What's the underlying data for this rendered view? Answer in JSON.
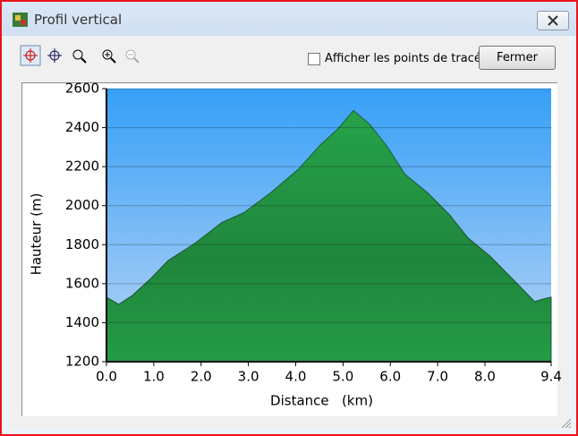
{
  "window": {
    "title": "Profil vertical",
    "checkbox_label": "Afficher les points de tracé",
    "close_button": "Fermer"
  },
  "chart_data": {
    "type": "area",
    "x_label": "Distance   (km)",
    "y_label": "Hauteur (m)",
    "x": [
      0,
      0.26,
      0.55,
      0.93,
      1.3,
      1.87,
      2.44,
      2.91,
      3.48,
      4.05,
      4.52,
      4.9,
      5.22,
      5.56,
      5.94,
      6.31,
      6.78,
      7.26,
      7.64,
      8.11,
      8.58,
      9.05,
      9.24,
      9.4
    ],
    "values": [
      1531,
      1494,
      1540,
      1625,
      1718,
      1807,
      1914,
      1965,
      2068,
      2185,
      2311,
      2395,
      2488,
      2418,
      2301,
      2161,
      2068,
      1951,
      1835,
      1741,
      1625,
      1508,
      1522,
      1531
    ],
    "color": "#26a34a",
    "xlim": [
      0,
      9.4
    ],
    "ylim": [
      1200,
      2600
    ],
    "xticks": [
      {
        "value": 0,
        "label": "0.0"
      },
      {
        "value": 1,
        "label": "1.0"
      },
      {
        "value": 2,
        "label": "2.0"
      },
      {
        "value": 3,
        "label": "3.0"
      },
      {
        "value": 4,
        "label": "4.0"
      },
      {
        "value": 5,
        "label": "5.0"
      },
      {
        "value": 6,
        "label": "6.0"
      },
      {
        "value": 7,
        "label": "7.0"
      },
      {
        "value": 8,
        "label": "8.0"
      },
      9.4
    ],
    "yticks": [
      1200,
      1400,
      1600,
      1800,
      2000,
      2200,
      2400,
      2600
    ],
    "grid": true
  }
}
